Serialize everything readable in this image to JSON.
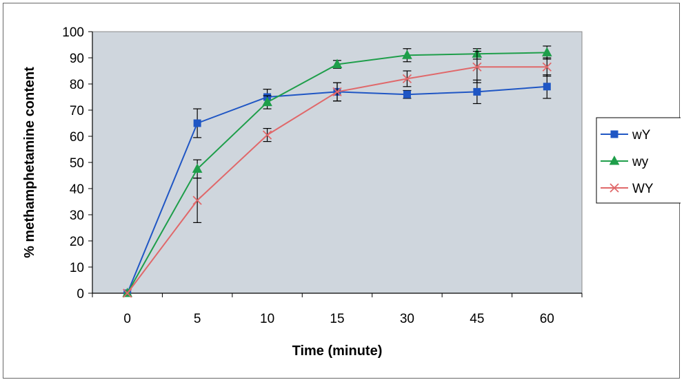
{
  "chart_data": {
    "type": "line",
    "title": "",
    "xlabel": "Time (minute)",
    "ylabel": "% methamphetamine content",
    "categories": [
      "0",
      "5",
      "10",
      "15",
      "30",
      "45",
      "60"
    ],
    "ylim": [
      0,
      100
    ],
    "yticks": [
      0,
      10,
      20,
      30,
      40,
      50,
      60,
      70,
      80,
      90,
      100
    ],
    "grid": false,
    "legend_position": "right",
    "series": [
      {
        "name": "wY",
        "color": "#1f56c4",
        "marker": "square",
        "values": [
          0,
          65,
          75,
          77,
          76,
          77,
          79
        ],
        "errors": [
          0,
          5.5,
          3,
          3.5,
          1.5,
          4.5,
          4.5
        ]
      },
      {
        "name": "wy",
        "color": "#1e9e4a",
        "marker": "triangle",
        "values": [
          0,
          47.5,
          73,
          87.5,
          91,
          91.5,
          92
        ],
        "errors": [
          0,
          3.5,
          2.5,
          1.5,
          2.5,
          2,
          2.5
        ]
      },
      {
        "name": "WY",
        "color": "#e0686a",
        "marker": "x",
        "values": [
          0,
          35.5,
          60.5,
          77,
          82,
          86.5,
          86.5
        ],
        "errors": [
          0,
          8.5,
          2.5,
          3.5,
          3,
          6,
          3.5
        ]
      }
    ]
  }
}
